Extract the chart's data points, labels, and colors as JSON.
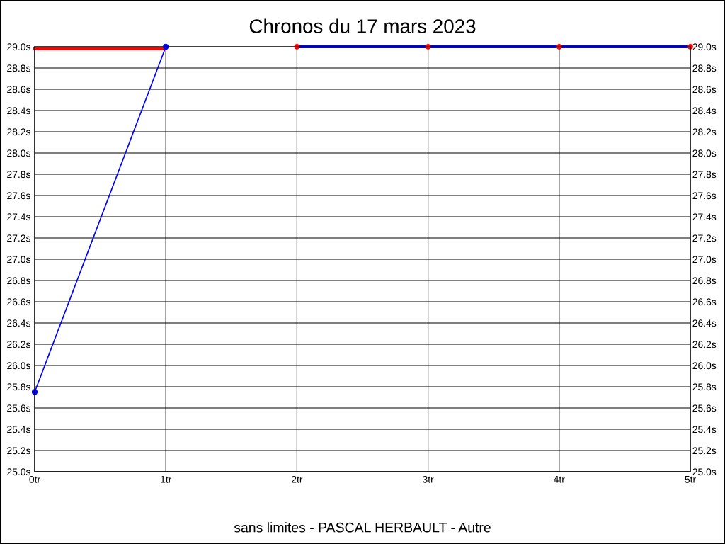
{
  "chart_data": {
    "type": "line",
    "title": "Chronos du 17 mars 2023",
    "xlabel": "sans limites - PASCAL HERBAULT - Autre",
    "series": [
      {
        "color": "#0000ff",
        "x": [
          0,
          1
        ],
        "values": [
          25.75,
          29.0
        ],
        "marker": "circle"
      },
      {
        "color": "#ff0000",
        "x": [
          0,
          1
        ],
        "values": [
          28.98,
          28.98
        ],
        "marker": "none"
      },
      {
        "color": "#0000ff",
        "x": [
          2,
          3,
          4,
          5
        ],
        "values": [
          29.0,
          29.0,
          29.0,
          29.0
        ],
        "marker": "none"
      },
      {
        "type": "scatter",
        "color": "#ff0000",
        "x": [
          2,
          3,
          4,
          5
        ],
        "values": [
          29.0,
          29.0,
          29.0,
          29.0
        ],
        "marker": "circle"
      }
    ],
    "xlim": [
      0,
      5
    ],
    "xticks": [
      {
        "value": 0,
        "label": "0tr"
      },
      {
        "value": 1,
        "label": "1tr"
      },
      {
        "value": 2,
        "label": "2tr"
      },
      {
        "value": 3,
        "label": "3tr"
      },
      {
        "value": 4,
        "label": "4tr"
      },
      {
        "value": 5,
        "label": "5tr"
      }
    ],
    "ylim": [
      25.0,
      29.0
    ],
    "yticks": [
      {
        "value": 25.0,
        "label": "25.0s"
      },
      {
        "value": 25.2,
        "label": "25.2s"
      },
      {
        "value": 25.4,
        "label": "25.4s"
      },
      {
        "value": 25.6,
        "label": "25.6s"
      },
      {
        "value": 25.8,
        "label": "25.8s"
      },
      {
        "value": 26.0,
        "label": "26.0s"
      },
      {
        "value": 26.2,
        "label": "26.2s"
      },
      {
        "value": 26.4,
        "label": "26.4s"
      },
      {
        "value": 26.6,
        "label": "26.6s"
      },
      {
        "value": 26.8,
        "label": "26.8s"
      },
      {
        "value": 27.0,
        "label": "27.0s"
      },
      {
        "value": 27.2,
        "label": "27.2s"
      },
      {
        "value": 27.4,
        "label": "27.4s"
      },
      {
        "value": 27.6,
        "label": "27.6s"
      },
      {
        "value": 27.8,
        "label": "27.8s"
      },
      {
        "value": 28.0,
        "label": "28.0s"
      },
      {
        "value": 28.2,
        "label": "28.2s"
      },
      {
        "value": 28.4,
        "label": "28.4s"
      },
      {
        "value": 28.6,
        "label": "28.6s"
      },
      {
        "value": 28.8,
        "label": "28.8s"
      },
      {
        "value": 29.0,
        "label": "29.0s"
      }
    ],
    "y2lim": [
      25.0,
      29.0
    ],
    "y2ticks": [
      {
        "value": 25.0,
        "label": "25.0s"
      },
      {
        "value": 25.2,
        "label": "25.2s"
      },
      {
        "value": 25.4,
        "label": "25.4s"
      },
      {
        "value": 25.6,
        "label": "25.6s"
      },
      {
        "value": 25.8,
        "label": "25.8s"
      },
      {
        "value": 26.0,
        "label": "26.0s"
      },
      {
        "value": 26.2,
        "label": "26.2s"
      },
      {
        "value": 26.4,
        "label": "26.4s"
      },
      {
        "value": 26.6,
        "label": "26.6s"
      },
      {
        "value": 26.8,
        "label": "26.8s"
      },
      {
        "value": 27.0,
        "label": "27.0s"
      },
      {
        "value": 27.2,
        "label": "27.2s"
      },
      {
        "value": 27.4,
        "label": "27.4s"
      },
      {
        "value": 27.6,
        "label": "27.6s"
      },
      {
        "value": 27.8,
        "label": "27.8s"
      },
      {
        "value": 28.0,
        "label": "28.0s"
      },
      {
        "value": 28.2,
        "label": "28.2s"
      },
      {
        "value": 28.4,
        "label": "28.4s"
      },
      {
        "value": 28.6,
        "label": "28.6s"
      },
      {
        "value": 28.8,
        "label": "28.8s"
      },
      {
        "value": 29.0,
        "label": "29.0s"
      }
    ],
    "grid": true,
    "legend": false
  }
}
